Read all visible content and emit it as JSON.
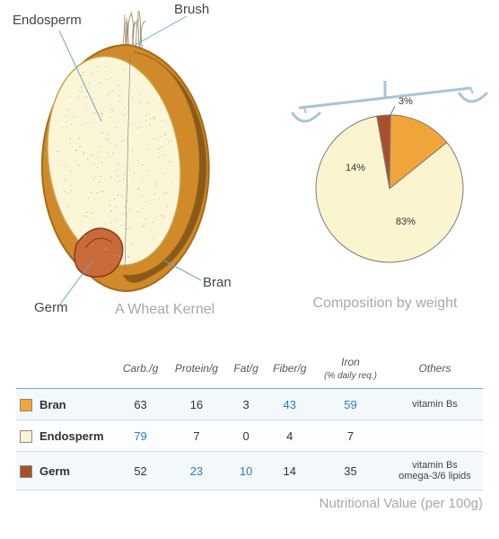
{
  "kernel": {
    "labels": {
      "endosperm": "Endosperm",
      "brush": "Brush",
      "bran": "Bran",
      "germ": "Germ"
    },
    "caption": "A Wheat Kernel",
    "colors": {
      "bran_outer": "#d08a2a",
      "bran_edge": "#a66a18",
      "endosperm_fill": "#fcf6d8",
      "endosperm_edge": "#c9a24a",
      "germ_fill": "#c96a3a",
      "germ_edge": "#8a3b1a",
      "brush": "#9a8e6a",
      "leader": "#6aa5cc"
    }
  },
  "pie": {
    "caption": "Composition by weight",
    "slices": [
      {
        "label": "83%",
        "value": 83,
        "color": "#fbf5cf"
      },
      {
        "label": "14%",
        "value": 14,
        "color": "#f0a53a"
      },
      {
        "label": "3%",
        "value": 3,
        "color": "#a8502c"
      }
    ],
    "scale_color": "#a7c5d6",
    "stroke": "#7a7a7a"
  },
  "table": {
    "caption": "Nutritional Value (per 100g)",
    "columns": [
      "",
      "Carb./g",
      "Protein/g",
      "Fat/g",
      "Fiber/g",
      "Iron\n(% daily req.)",
      "Others"
    ],
    "rows": [
      {
        "name": "Bran",
        "swatch": "#f0a53a",
        "carb": "63",
        "protein": "16",
        "fat": "3",
        "fiber": "43",
        "iron": "59",
        "others": "vitamin Bs",
        "hi": [
          "fiber",
          "iron"
        ]
      },
      {
        "name": "Endosperm",
        "swatch": "#fbf5cf",
        "carb": "79",
        "protein": "7",
        "fat": "0",
        "fiber": "4",
        "iron": "7",
        "others": "",
        "hi": [
          "carb"
        ]
      },
      {
        "name": "Germ",
        "swatch": "#a8502c",
        "carb": "52",
        "protein": "23",
        "fat": "10",
        "fiber": "14",
        "iron": "35",
        "others": "vitamin Bs\nomega-3/6 lipids",
        "hi": [
          "protein",
          "fat"
        ]
      }
    ]
  }
}
